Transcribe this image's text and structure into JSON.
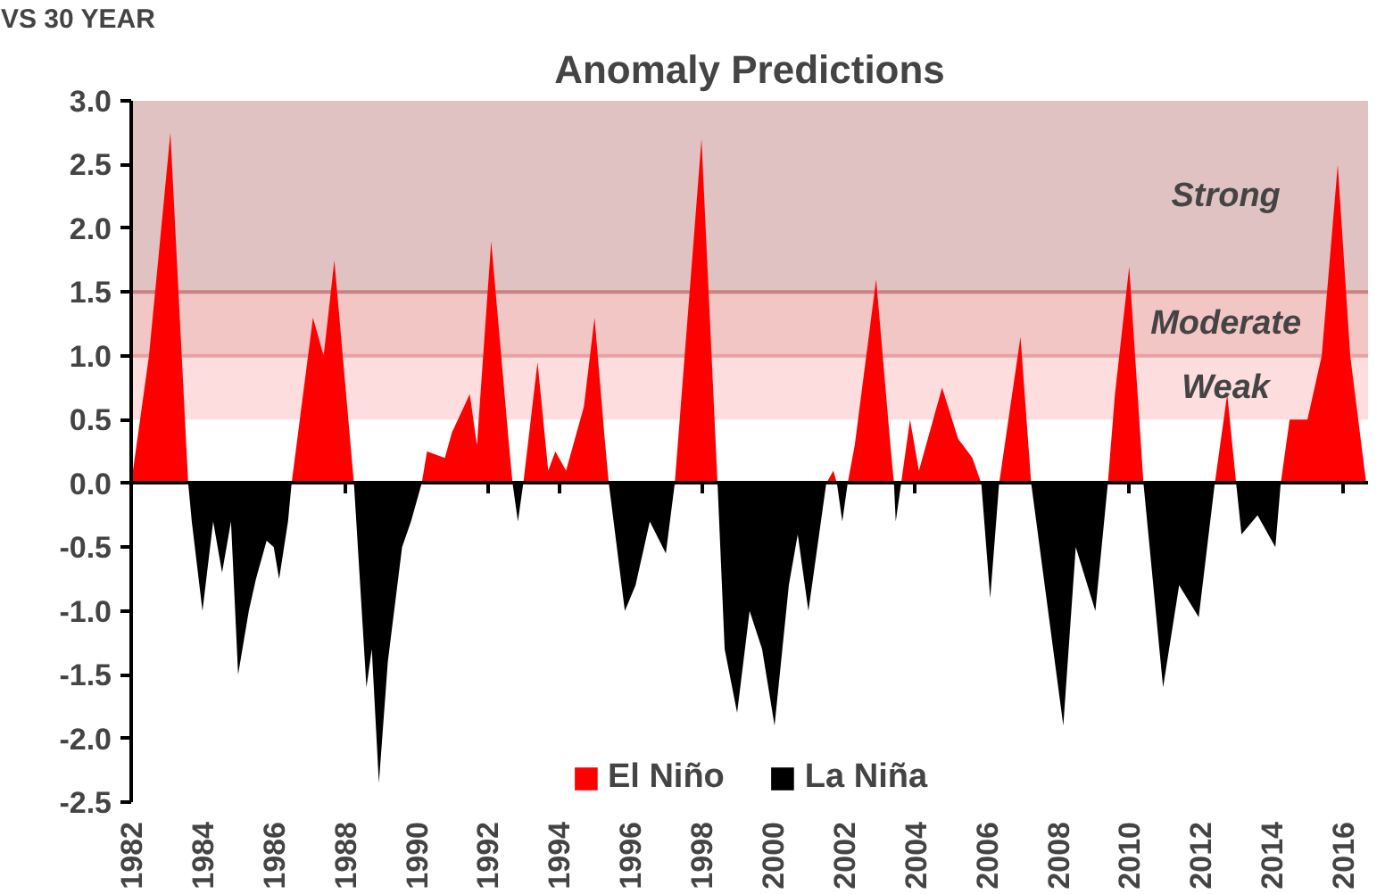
{
  "chart_data": {
    "type": "area",
    "title": "Anomaly Predictions",
    "annotations": [
      "VS 30 YEAR"
    ],
    "xlim": [
      1982,
      2016.7
    ],
    "xticks": [
      1982,
      1984,
      1986,
      1988,
      1990,
      1992,
      1994,
      1996,
      1998,
      2000,
      2002,
      2004,
      2006,
      2008,
      2010,
      2012,
      2014,
      2016
    ],
    "ylim": [
      -2.5,
      3.0
    ],
    "yticks": [
      {
        "value": -2.5,
        "label": "-2.5"
      },
      {
        "value": -2,
        "label": "-2.0"
      },
      {
        "value": -1.5,
        "label": "-1.5"
      },
      {
        "value": -1,
        "label": "-1.0"
      },
      {
        "value": -0.5,
        "label": "-0.5"
      },
      {
        "value": 0,
        "label": "0.0"
      },
      {
        "value": 0.5,
        "label": "0.5"
      },
      {
        "value": 1,
        "label": "1.0"
      },
      {
        "value": 1.5,
        "label": "1.5"
      },
      {
        "value": 2,
        "label": "2.0"
      },
      {
        "value": 2.5,
        "label": "2.5"
      },
      {
        "value": 3,
        "label": "3.0"
      }
    ],
    "bands": [
      {
        "axis": "y",
        "from": 0.5,
        "to": 1.0,
        "label": "Weak",
        "color": "#fddddd"
      },
      {
        "axis": "y",
        "from": 1.0,
        "to": 1.5,
        "label": "Moderate",
        "color": "#f3c6c6"
      },
      {
        "axis": "y",
        "from": 1.5,
        "to": 3.0,
        "label": "Strong",
        "color": "#e0c2c2"
      }
    ],
    "ref_lines": [
      {
        "axis": "y",
        "value": 1.0,
        "color": "#eba0a0"
      },
      {
        "axis": "y",
        "value": 1.5,
        "color": "#c98282"
      }
    ],
    "series": [
      {
        "name": "El Niño",
        "color": "#ff0000",
        "x": [
          1982.0,
          1982.5,
          1983.1,
          1983.6,
          1986.5,
          1987.1,
          1987.4,
          1987.7,
          1988.25,
          1990.15,
          1990.3,
          1990.8,
          1991.0,
          1991.5,
          1991.7,
          1992.1,
          1992.6,
          1992.7,
          1993.0,
          1993.4,
          1993.7,
          1993.9,
          1994.2,
          1994.5,
          1994.7,
          1995.0,
          1995.3,
          1995.4,
          1997.25,
          1998.0,
          1998.45,
          1999.5,
          2001.5,
          2001.7,
          2001.8,
          2002.1,
          2002.3,
          2002.9,
          2003.3,
          2003.4,
          2003.6,
          2003.85,
          2004.1,
          2004.75,
          2005.2,
          2005.6,
          2005.85,
          2006.35,
          2006.95,
          2007.25,
          2009.4,
          2009.6,
          2010.0,
          2010.4,
          2012.4,
          2012.75,
          2013.0,
          2014.25,
          2014.5,
          2015.0,
          2015.4,
          2015.85,
          2016.2,
          2016.65
        ],
        "values": [
          0,
          1.0,
          2.75,
          0,
          0,
          1.3,
          1.0,
          1.75,
          0,
          0,
          0.25,
          0.2,
          0.4,
          0.7,
          0.3,
          1.9,
          0.3,
          0,
          0,
          0.95,
          0.1,
          0.25,
          0.1,
          0.4,
          0.6,
          1.3,
          0.3,
          0,
          0,
          2.7,
          0,
          0,
          0,
          0.1,
          0,
          0,
          0.3,
          1.6,
          0.3,
          0,
          0,
          0.5,
          0.1,
          0.75,
          0.35,
          0.2,
          0,
          0,
          1.15,
          0,
          0,
          0.7,
          1.7,
          0,
          0,
          0.7,
          0,
          0,
          0.5,
          0.5,
          1.0,
          2.5,
          1.0,
          0
        ]
      },
      {
        "name": "La Niña",
        "color": "#000000",
        "x": [
          1983.6,
          1983.7,
          1984.0,
          1984.3,
          1984.55,
          1984.8,
          1985.0,
          1985.3,
          1985.5,
          1985.8,
          1986.0,
          1986.15,
          1986.4,
          1986.5,
          1988.25,
          1988.6,
          1988.75,
          1988.95,
          1989.2,
          1989.6,
          1989.85,
          1990.15,
          1992.7,
          1992.85,
          1993.0,
          1995.4,
          1995.85,
          1996.15,
          1996.55,
          1997.0,
          1997.25,
          1998.45,
          1998.65,
          1999.0,
          1999.35,
          1999.7,
          2000.05,
          2000.45,
          2000.7,
          2001.0,
          2001.4,
          2001.5,
          2001.8,
          2001.95,
          2002.1,
          2003.4,
          2003.45,
          2003.6,
          2005.85,
          2006.1,
          2006.35,
          2007.25,
          2008.15,
          2008.5,
          2009.05,
          2009.4,
          2010.4,
          2010.95,
          2011.4,
          2011.95,
          2012.4,
          2013.0,
          2013.15,
          2013.6,
          2014.1,
          2014.25
        ],
        "values": [
          0,
          -0.3,
          -1.0,
          -0.3,
          -0.7,
          -0.3,
          -1.5,
          -1.0,
          -0.75,
          -0.45,
          -0.5,
          -0.75,
          -0.3,
          0,
          0,
          -1.6,
          -1.3,
          -2.35,
          -1.4,
          -0.5,
          -0.3,
          0,
          0,
          -0.3,
          0,
          0,
          -1.0,
          -0.8,
          -0.3,
          -0.55,
          0,
          0,
          -1.3,
          -1.8,
          -1.0,
          -1.3,
          -1.9,
          -0.8,
          -0.4,
          -1.0,
          -0.2,
          0,
          0,
          -0.3,
          0,
          0,
          -0.3,
          0,
          0,
          -0.9,
          0,
          0,
          -1.9,
          -0.5,
          -1.0,
          0,
          0,
          -1.6,
          -0.8,
          -1.05,
          0,
          0,
          -0.4,
          -0.25,
          -0.5,
          0
        ]
      }
    ],
    "grid": false,
    "legend": "bottom"
  }
}
